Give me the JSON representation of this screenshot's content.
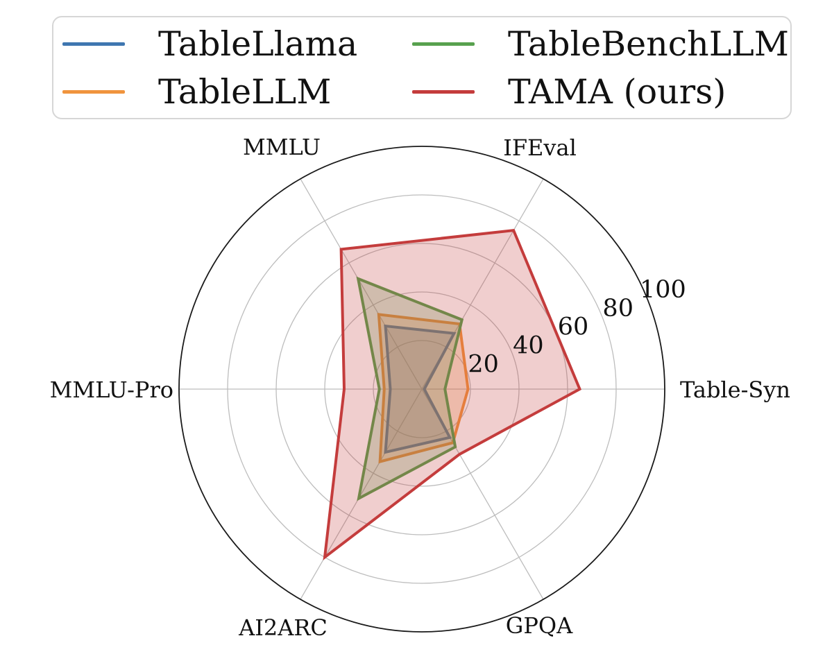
{
  "chart_data": {
    "type": "radar",
    "title": "",
    "categories": [
      "Table-Syn",
      "IFEval",
      "MMLU",
      "MMLU-Pro",
      "AI2ARC",
      "GPQA"
    ],
    "angles_deg": [
      0,
      60,
      120,
      180,
      240,
      300
    ],
    "series": [
      {
        "name": "TableLlama",
        "color": "#3f76b0",
        "values": [
          1,
          26.5,
          30,
          13,
          30,
          23
        ]
      },
      {
        "name": "TableLLM",
        "color": "#f0943e",
        "values": [
          19,
          31,
          35.5,
          15.5,
          34.5,
          25.5
        ]
      },
      {
        "name": "TableBenchLLM",
        "color": "#58a14e",
        "values": [
          9.5,
          33,
          52.5,
          17.5,
          52,
          27.5
        ]
      },
      {
        "name": "TAMA (ours)",
        "color": "#c43c3c",
        "values": [
          65,
          75.5,
          66.5,
          32,
          80,
          31
        ]
      }
    ],
    "radial_ticks": [
      20,
      40,
      60,
      80,
      100
    ],
    "ylim": [
      0,
      100
    ],
    "r_label_angle_deg": 22.5,
    "grid": true,
    "legend_position": "top",
    "colors": {
      "grid_line": "#bdbdbd",
      "outer_ring": "#1a1a1a",
      "tick_text": "#111111",
      "fill_alpha": 0.25
    }
  },
  "legend": {
    "items": [
      {
        "label": "TableLlama"
      },
      {
        "label": "TableLLM"
      },
      {
        "label": "TableBenchLLM"
      },
      {
        "label": "TAMA (ours)"
      }
    ]
  }
}
